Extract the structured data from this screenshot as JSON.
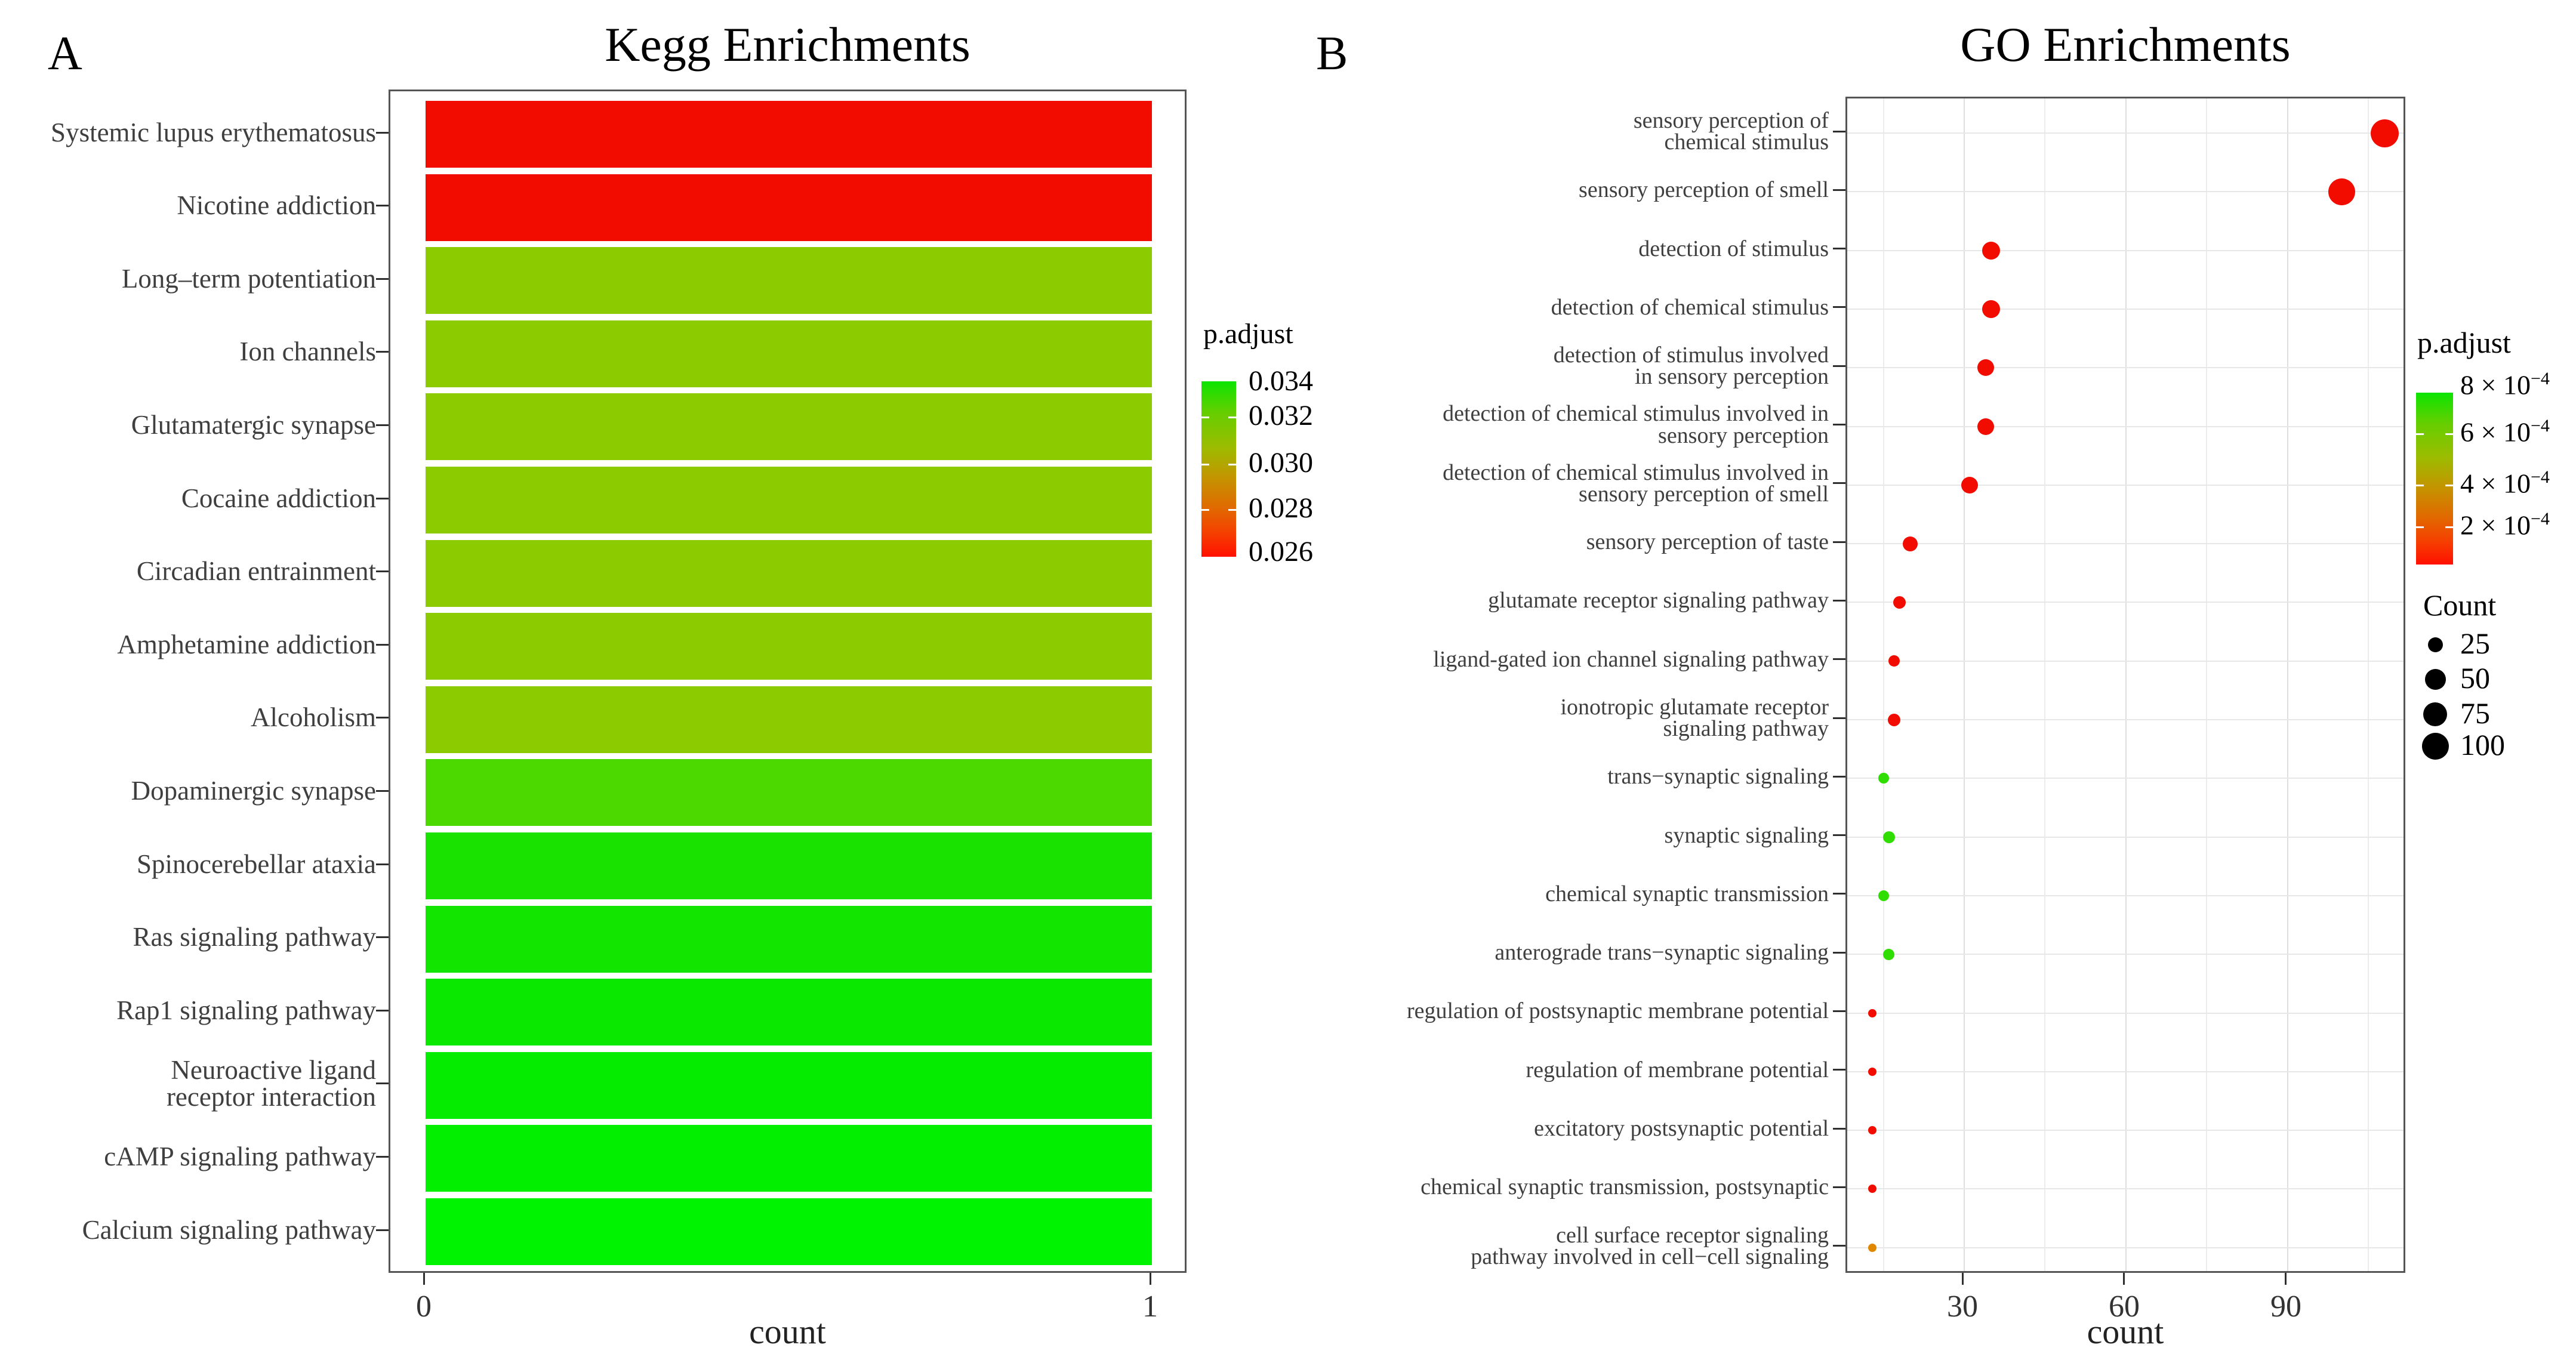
{
  "figure": {
    "panel_a_label": "A",
    "panel_b_label": "B"
  },
  "chart_data": [
    {
      "id": "kegg",
      "type": "bar",
      "title": "Kegg Enrichments",
      "xlabel": "count",
      "x_ticks": [
        "0",
        "1"
      ],
      "xlim": [
        0,
        1.05
      ],
      "grid": false,
      "legend": {
        "title": "p.adjust",
        "ticks": [
          "0.034",
          "0.032",
          "0.030",
          "0.028",
          "0.026"
        ],
        "range": [
          0.034,
          0.026
        ],
        "top_color": "#0CE400",
        "bottom_color": "#FF1000"
      },
      "categories": [
        "Systemic lupus erythematosus",
        "Nicotine addiction",
        "Long–term potentiation",
        "Ion channels",
        "Glutamatergic synapse",
        "Cocaine addiction",
        "Circadian entrainment",
        "Amphetamine addiction",
        "Alcoholism",
        "Dopaminergic synapse",
        "Spinocerebellar ataxia",
        "Ras signaling pathway",
        "Rap1 signaling pathway",
        "Neuroactive ligand\nreceptor interaction",
        "cAMP signaling pathway",
        "Calcium signaling pathway"
      ],
      "values": [
        1,
        1,
        1,
        1,
        1,
        1,
        1,
        1,
        1,
        1,
        1,
        1,
        1,
        1,
        1,
        1
      ],
      "p_adjust": [
        0.026,
        0.026,
        0.0315,
        0.0315,
        0.0315,
        0.0315,
        0.0315,
        0.0315,
        0.0315,
        0.033,
        0.0335,
        0.0335,
        0.0335,
        0.034,
        0.034,
        0.034
      ],
      "colors": [
        "#F20C00",
        "#F20C00",
        "#8CCB00",
        "#8CCB00",
        "#8CCB00",
        "#8CCB00",
        "#8CCB00",
        "#8CCB00",
        "#8CCB00",
        "#4CD900",
        "#19E200",
        "#11E500",
        "#0BE800",
        "#06EC00",
        "#02EF00",
        "#00F300"
      ]
    },
    {
      "id": "go",
      "type": "scatter",
      "title": "GO Enrichments",
      "xlabel": "count",
      "x_ticks": [
        "30",
        "60",
        "90"
      ],
      "x_tick_values": [
        30,
        60,
        90
      ],
      "xlim": [
        8,
        112
      ],
      "grid": true,
      "legend_padjust": {
        "title": "p.adjust",
        "ticks": [
          {
            "base": "8 × 10",
            "exp": "−4"
          },
          {
            "base": "6 × 10",
            "exp": "−4"
          },
          {
            "base": "4 × 10",
            "exp": "−4"
          },
          {
            "base": "2 × 10",
            "exp": "−4"
          }
        ],
        "top_color": "#0CE400",
        "bottom_color": "#FF1000"
      },
      "legend_count": {
        "title": "Count",
        "items": [
          {
            "label": "25",
            "d": 25
          },
          {
            "label": "50",
            "d": 35
          },
          {
            "label": "75",
            "d": 40
          },
          {
            "label": "100",
            "d": 45
          }
        ]
      },
      "points": [
        {
          "label": "sensory perception of\nchemical stimulus",
          "count": 108,
          "p_adjust": 0.0001,
          "color": "#F20C00",
          "d": 47
        },
        {
          "label": "sensory perception of smell",
          "count": 100,
          "p_adjust": 0.0001,
          "color": "#F20C00",
          "d": 45
        },
        {
          "label": "detection of stimulus",
          "count": 35,
          "p_adjust": 0.0001,
          "color": "#F20C00",
          "d": 30
        },
        {
          "label": "detection of chemical stimulus",
          "count": 35,
          "p_adjust": 0.0001,
          "color": "#F20C00",
          "d": 30
        },
        {
          "label": "detection of stimulus involved\nin sensory perception",
          "count": 34,
          "p_adjust": 0.0001,
          "color": "#F20C00",
          "d": 28
        },
        {
          "label": "detection of chemical stimulus involved in\nsensory perception",
          "count": 34,
          "p_adjust": 0.0001,
          "color": "#F20C00",
          "d": 28
        },
        {
          "label": "detection of chemical stimulus involved in\nsensory perception of smell",
          "count": 31,
          "p_adjust": 0.0001,
          "color": "#F20C00",
          "d": 28
        },
        {
          "label": "sensory perception of taste",
          "count": 20,
          "p_adjust": 0.0001,
          "color": "#F20C00",
          "d": 25
        },
        {
          "label": "glutamate receptor signaling pathway",
          "count": 18,
          "p_adjust": 0.0001,
          "color": "#F20C00",
          "d": 21
        },
        {
          "label": "ligand-gated ion channel signaling pathway",
          "count": 17,
          "p_adjust": 0.0001,
          "color": "#F20C00",
          "d": 19
        },
        {
          "label": "ionotropic glutamate receptor\nsignaling pathway",
          "count": 17,
          "p_adjust": 0.0001,
          "color": "#F20C00",
          "d": 21
        },
        {
          "label": "trans−synaptic signaling",
          "count": 15,
          "p_adjust": 0.0008,
          "color": "#2FDE00",
          "d": 18
        },
        {
          "label": "synaptic signaling",
          "count": 16,
          "p_adjust": 0.0008,
          "color": "#2FDE00",
          "d": 20
        },
        {
          "label": "chemical synaptic transmission",
          "count": 15,
          "p_adjust": 0.0008,
          "color": "#2FDE00",
          "d": 18
        },
        {
          "label": "anterograde trans−synaptic signaling",
          "count": 16,
          "p_adjust": 0.0008,
          "color": "#2FDE00",
          "d": 19
        },
        {
          "label": "regulation of postsynaptic membrane potential",
          "count": 13,
          "p_adjust": 0.0001,
          "color": "#F20C00",
          "d": 14
        },
        {
          "label": "regulation of membrane potential",
          "count": 13,
          "p_adjust": 0.0001,
          "color": "#F20C00",
          "d": 14
        },
        {
          "label": "excitatory postsynaptic potential",
          "count": 13,
          "p_adjust": 0.0001,
          "color": "#F20C00",
          "d": 14
        },
        {
          "label": "chemical synaptic transmission, postsynaptic",
          "count": 13,
          "p_adjust": 0.0001,
          "color": "#F20C00",
          "d": 14
        },
        {
          "label": "cell surface receptor signaling\npathway involved in cell−cell signaling",
          "count": 13,
          "p_adjust": 0.00025,
          "color": "#E08700",
          "d": 14
        }
      ]
    }
  ]
}
